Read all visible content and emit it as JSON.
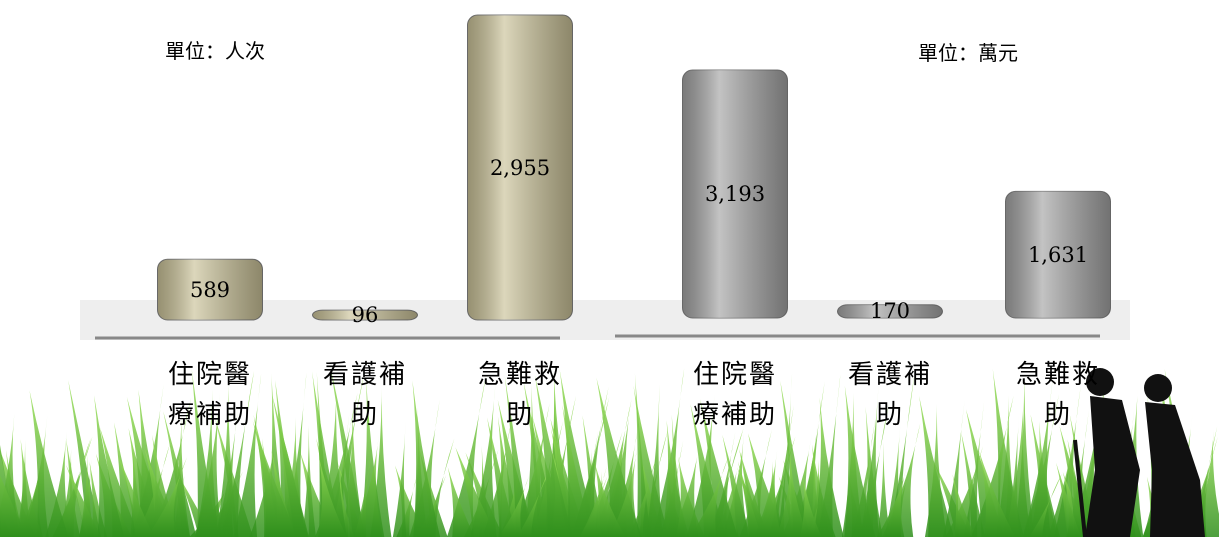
{
  "chart_data": [
    {
      "type": "bar",
      "subtitle": "單位：人次",
      "categories": [
        "住院醫療補助",
        "看護補助",
        "急難救助"
      ],
      "values": [
        589,
        96,
        2955
      ],
      "value_labels": [
        "589",
        "96",
        "2,955"
      ],
      "color": "#c9c197"
    },
    {
      "type": "bar",
      "subtitle": "單位：萬元",
      "categories": [
        "住院醫療補助",
        "看護補助",
        "急難救助"
      ],
      "values": [
        3193,
        170,
        1631
      ],
      "value_labels": [
        "3,193",
        "170",
        "1,631"
      ],
      "color": "#a3a3a3"
    }
  ]
}
